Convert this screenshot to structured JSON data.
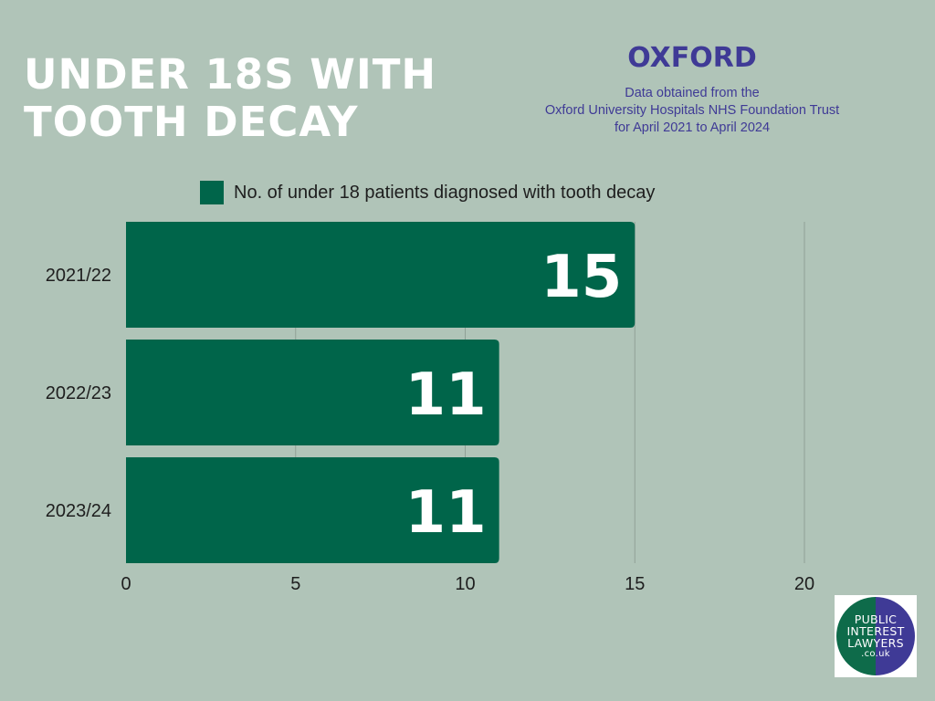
{
  "header": {
    "title_line1": "UNDER 18S WITH",
    "title_line2": "TOOTH DECAY",
    "city": "OXFORD",
    "source_line1": "Data obtained from the",
    "source_line2": "Oxford University Hospitals NHS Foundation Trust",
    "source_line3": "for April 2021 to April 2024"
  },
  "logo": {
    "line1": "PUBLIC",
    "line2": "INTEREST",
    "line3": "LAWYERS",
    "line4": ".co.uk"
  },
  "colors": {
    "background": "#b0c4b8",
    "bar": "#00654a",
    "title": "#ffffff",
    "accent": "#3f3a96"
  },
  "chart_data": {
    "type": "bar",
    "orientation": "horizontal",
    "categories": [
      "2021/22",
      "2022/23",
      "2023/24"
    ],
    "series": [
      {
        "name": "No. of under 18 patients diagnosed with tooth decay",
        "values": [
          15,
          11,
          11
        ]
      }
    ],
    "data_labels": [
      "15",
      "11",
      "11"
    ],
    "x_ticks": [
      "0",
      "5",
      "10",
      "15",
      "20"
    ],
    "xlim": [
      0,
      20
    ],
    "grid": true,
    "legend": "top"
  }
}
